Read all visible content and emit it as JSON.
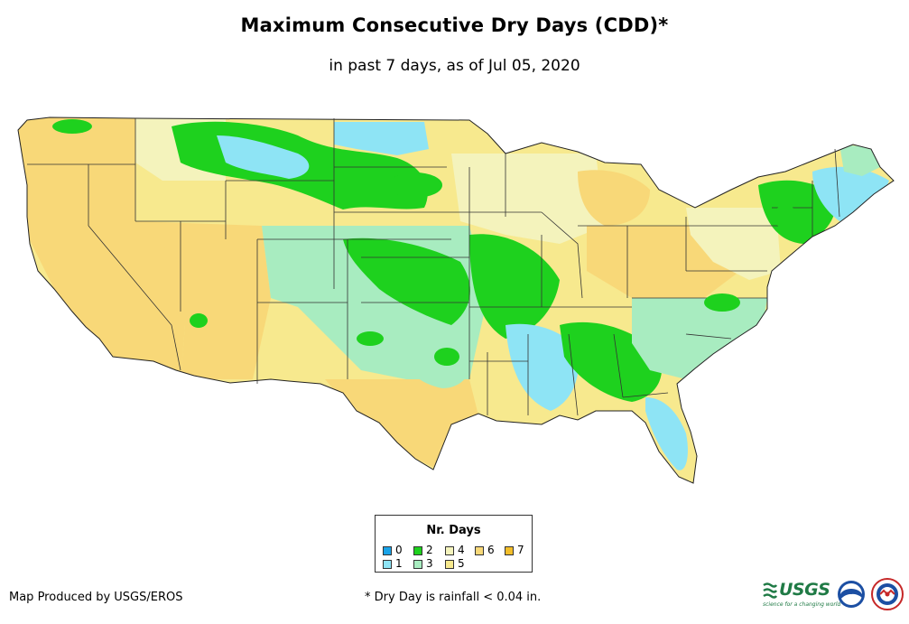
{
  "title": "Maximum Consecutive Dry Days (CDD)*",
  "subtitle": "in past 7 days, as of Jul 05, 2020",
  "legend": {
    "title": "Nr. Days",
    "items": [
      {
        "label": "0",
        "color": "#1aa3e8"
      },
      {
        "label": "1",
        "color": "#8ee4f5"
      },
      {
        "label": "2",
        "color": "#1ed11e"
      },
      {
        "label": "3",
        "color": "#a8ecc0"
      },
      {
        "label": "4",
        "color": "#f4f3bc"
      },
      {
        "label": "5",
        "color": "#f7e98e"
      },
      {
        "label": "6",
        "color": "#f8d878"
      },
      {
        "label": "7",
        "color": "#f3be2a"
      }
    ]
  },
  "footer": {
    "credit": "Map Produced by USGS/EROS",
    "note": "* Dry Day is rainfall < 0.04 in."
  },
  "logos": {
    "usgs_text": "USGS",
    "usgs_tagline": "science for a changing world",
    "noaa_icon": "noaa-logo-icon",
    "nws_icon": "nws-logo-icon"
  }
}
